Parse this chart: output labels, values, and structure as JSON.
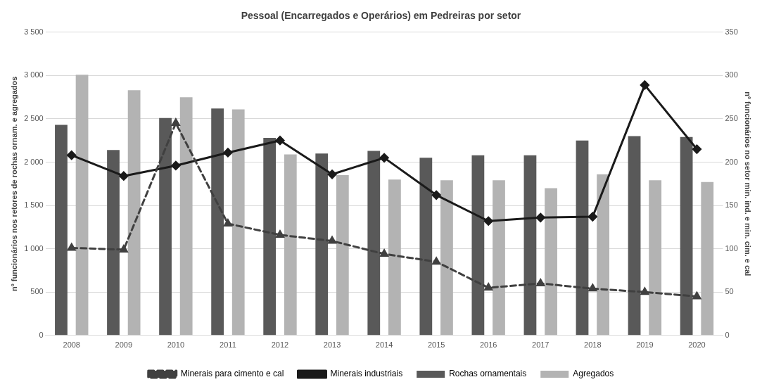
{
  "chart_data": {
    "type": "bar",
    "title": "Pessoal (Encarregados e Operários) em Pedreiras por setor",
    "ylabel": "nº funcionários nos retores de rochas ornam. e agregados",
    "y2label": "nº funcionários no setor min. ind. e min. cim. e cal",
    "categories": [
      "2008",
      "2009",
      "2010",
      "2011",
      "2012",
      "2013",
      "2014",
      "2015",
      "2016",
      "2017",
      "2018",
      "2019",
      "2020"
    ],
    "series": [
      {
        "name": "Rochas ornamentais",
        "color": "#595959",
        "values": [
          2430,
          2140,
          2510,
          2620,
          2280,
          2100,
          2130,
          2050,
          2080,
          2080,
          2250,
          2300,
          2290
        ]
      },
      {
        "name": "Agregados",
        "color": "#b3b3b3",
        "values": [
          3010,
          2830,
          2750,
          2610,
          2090,
          1850,
          1800,
          1790,
          1790,
          1700,
          1860,
          1790,
          1770
        ]
      },
      {
        "name": "Minerais para cimento e cal",
        "type": "line",
        "axis": "y2",
        "color": "#404040",
        "marker": "triangle",
        "line_style": "dashed",
        "values": [
          101,
          99,
          245,
          129,
          116,
          109,
          94,
          85,
          55,
          60,
          54,
          50,
          45
        ]
      },
      {
        "name": "Minerais industriais",
        "type": "line",
        "axis": "y2",
        "color": "#1a1a1a",
        "marker": "diamond",
        "line_style": "solid",
        "values": [
          208,
          184,
          196,
          211,
          225,
          186,
          205,
          162,
          132,
          136,
          137,
          289,
          215
        ]
      }
    ],
    "ylim": [
      0,
      3500
    ],
    "yticks": [
      0,
      500,
      {
        "value": 1000,
        "label": "1 000"
      },
      {
        "value": 1500,
        "label": "1 500"
      },
      {
        "value": 2000,
        "label": "2 000"
      },
      {
        "value": 2500,
        "label": "2 500"
      },
      {
        "value": 3000,
        "label": "3 000"
      },
      {
        "value": 3500,
        "label": "3 500"
      }
    ],
    "y2lim": [
      0,
      350
    ],
    "y2ticks": [
      0,
      50,
      100,
      150,
      200,
      250,
      300,
      350
    ],
    "grid": "y",
    "legend": "bottom"
  }
}
